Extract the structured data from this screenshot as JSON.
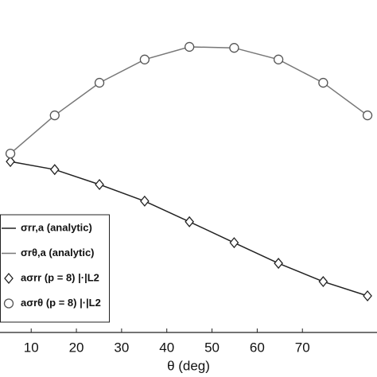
{
  "chart_data": {
    "type": "line",
    "x_label": "θ (deg)",
    "x": [
      5.4,
      15.2,
      25.1,
      35.1,
      45.0,
      54.9,
      64.7,
      74.6,
      84.4
    ],
    "xlim": [
      3.1,
      86.5
    ],
    "xticks": [
      10,
      20,
      30,
      40,
      50,
      60,
      70
    ],
    "ylim": [
      0,
      1
    ],
    "series": [
      {
        "name": "σrr,a (analytic)",
        "color": "#222222",
        "marker": "none",
        "values": [
          0.514,
          0.49,
          0.445,
          0.395,
          0.333,
          0.27,
          0.208,
          0.153,
          0.11
        ]
      },
      {
        "name": "σrθ,a (analytic)",
        "color": "#777777",
        "marker": "none",
        "values": [
          0.538,
          0.653,
          0.751,
          0.821,
          0.859,
          0.856,
          0.821,
          0.751,
          0.653
        ]
      },
      {
        "name": "aσrr (p = 8)   |·|L2",
        "color": "#222222",
        "marker": "diamond",
        "values": [
          0.514,
          0.49,
          0.445,
          0.395,
          0.333,
          0.27,
          0.208,
          0.153,
          0.11
        ]
      },
      {
        "name": "aσrθ (p = 8)   |·|L2",
        "color": "#555555",
        "marker": "circle",
        "values": [
          0.538,
          0.653,
          0.751,
          0.821,
          0.859,
          0.856,
          0.821,
          0.751,
          0.653
        ]
      }
    ]
  }
}
